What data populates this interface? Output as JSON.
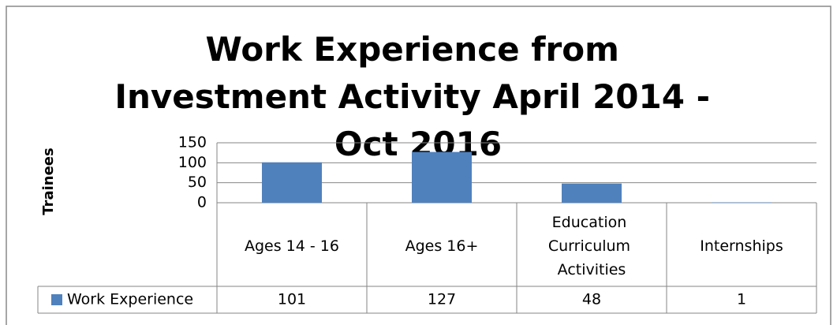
{
  "chart_data": {
    "type": "bar",
    "title": "Work Experience from Investment Activity April 2014 - Oct 2016",
    "y_label": "Trainees",
    "categories": [
      "Ages 14 - 16",
      "Ages 16+",
      "Education Curriculum Activities",
      "Internships"
    ],
    "series": [
      {
        "name": "Work Experience",
        "color": "#4f81bd",
        "values": [
          101,
          127,
          48,
          1
        ]
      }
    ],
    "ylim": [
      0,
      150
    ],
    "yticks": [
      0,
      50,
      100,
      150
    ],
    "grid": true,
    "data_table": true
  }
}
